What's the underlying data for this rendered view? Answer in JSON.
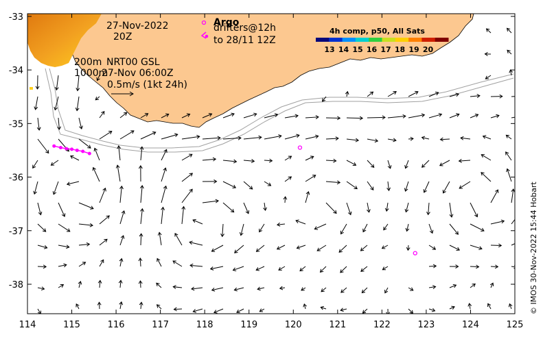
{
  "annotations": {
    "date": "27-Nov-2022",
    "hour": "20Z",
    "argo_title": "Argo",
    "drifters_line1": "drifters@12h",
    "drifters_line2": "to 28/11 12Z",
    "depth1": "200m",
    "depth2": "1000m",
    "nrt": "NRT00 GSL",
    "nrt_time": "27-Nov 06:00Z",
    "scale": "0.5m/s (1kt 24h)",
    "credit": "© IMOS 30-Nov-2022 15:44 Hobart"
  },
  "colorbar": {
    "title": "4h comp, p50, All Sats",
    "ticks": [
      "13",
      "14",
      "15",
      "16",
      "17",
      "18",
      "19",
      "20"
    ],
    "colors": [
      "#08087a",
      "#0030d0",
      "#0090ff",
      "#00d0d0",
      "#30d040",
      "#c8e020",
      "#ffd000",
      "#ff8000",
      "#d02000",
      "#800000"
    ]
  },
  "axes": {
    "x_ticks": [
      "114",
      "115",
      "116",
      "117",
      "118",
      "119",
      "120",
      "121",
      "122",
      "123",
      "124",
      "125"
    ],
    "y_ticks": [
      "-33",
      "-34",
      "-35",
      "-36",
      "-37",
      "-38"
    ],
    "xlim": [
      114,
      125
    ],
    "ylim": [
      -38.55,
      -32.95
    ]
  },
  "colors": {
    "land": "#fcc890",
    "argo": "#ff00ff",
    "drifter": "#ff00ff",
    "isobath": "#a0a0a0"
  },
  "argo_floats": [
    {
      "lon": 120.15,
      "lat": -35.45
    },
    {
      "lon": 122.75,
      "lat": -37.42
    }
  ],
  "drifter_track": [
    {
      "lon": 114.6,
      "lat": -35.42
    },
    {
      "lon": 114.75,
      "lat": -35.45
    },
    {
      "lon": 114.88,
      "lat": -35.47
    },
    {
      "lon": 115.0,
      "lat": -35.48
    },
    {
      "lon": 115.12,
      "lat": -35.5
    },
    {
      "lon": 115.25,
      "lat": -35.52
    },
    {
      "lon": 115.4,
      "lat": -35.56
    }
  ]
}
